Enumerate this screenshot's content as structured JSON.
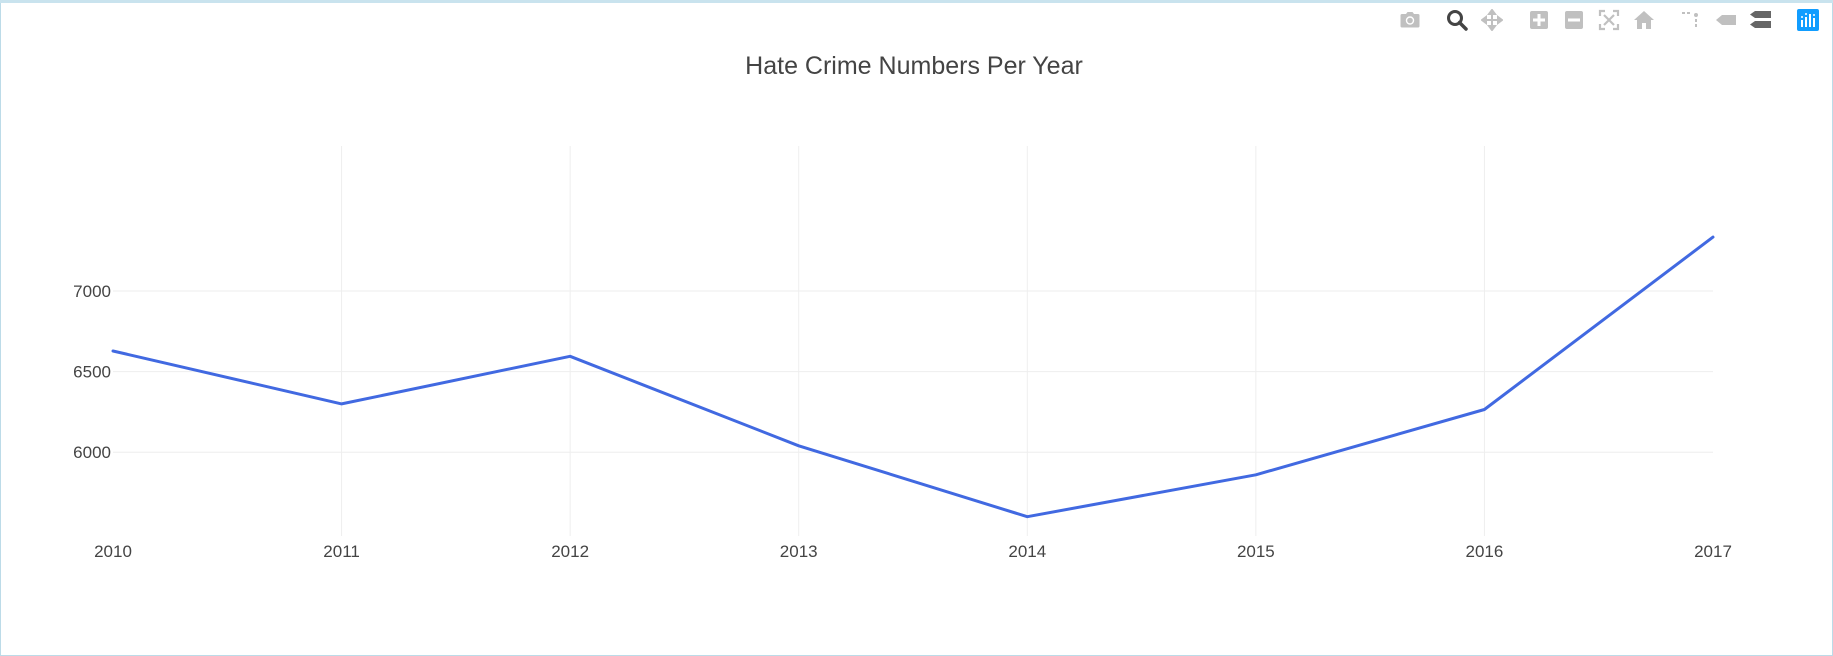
{
  "toolbar": {
    "buttons": [
      {
        "name": "camera-icon",
        "title": "Download plot as a png"
      },
      {
        "name": "zoom-icon",
        "title": "Zoom"
      },
      {
        "name": "pan-icon",
        "title": "Pan"
      },
      {
        "name": "zoom-in-icon",
        "title": "Zoom in"
      },
      {
        "name": "zoom-out-icon",
        "title": "Zoom out"
      },
      {
        "name": "autoscale-icon",
        "title": "Autoscale"
      },
      {
        "name": "home-icon",
        "title": "Reset axes"
      },
      {
        "name": "spike-lines-icon",
        "title": "Toggle Spike Lines"
      },
      {
        "name": "hover-closest-icon",
        "title": "Show closest data on hover"
      },
      {
        "name": "hover-compare-icon",
        "title": "Compare data on hover"
      },
      {
        "name": "plotly-logo-icon",
        "title": "Produced with Plotly"
      }
    ],
    "active_color": "#444444",
    "inactive_color": "#c0c0c0",
    "logo_color": "#119dff"
  },
  "chart_data": {
    "type": "line",
    "title": "Hate Crime Numbers Per Year",
    "xlabel": "",
    "ylabel": "",
    "x": [
      2010,
      2011,
      2012,
      2013,
      2014,
      2015,
      2016,
      2017
    ],
    "series": [
      {
        "values": [
          6628,
          6300,
          6595,
          6040,
          5600,
          5860,
          6265,
          7335
        ],
        "color": "#4169e1"
      }
    ],
    "xlim": [
      2010,
      2017
    ],
    "ylim": [
      5480,
      7900
    ],
    "y_ticks": [
      6000,
      6500,
      7000
    ],
    "x_ticks": [
      2010,
      2011,
      2012,
      2013,
      2014,
      2015,
      2016,
      2017
    ],
    "grid": true,
    "legend": "none"
  }
}
